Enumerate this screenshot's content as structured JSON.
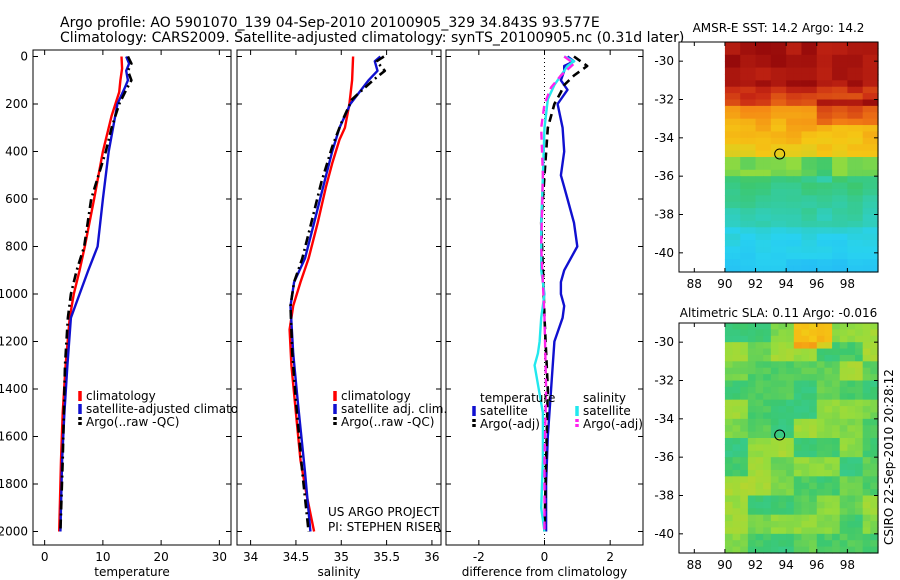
{
  "figure": {
    "title_line1": "Argo profile: AO 5901070_139 04-Sep-2010 20100905_329 34.843S 93.577E",
    "title_line2": "Climatology: CARS2009. Satellite-adjusted climatology: synTS_20100905.nc (0.31d later)",
    "project_line1": "US ARGO PROJECT",
    "project_line2": "PI: STEPHEN RISER",
    "side_stamp": "CSIRO 22-Sep-2010 20:28:12"
  },
  "colors": {
    "climatology": "#ff0000",
    "satellite": "#1010d0",
    "argo": "#000000",
    "diff_sal_sat": "#22e8ee",
    "diff_sal_argo": "#ff22ee",
    "marker_edge": "#000000"
  },
  "chart_data": [
    {
      "type": "line",
      "id": "temperature",
      "xlabel": "temperature",
      "ylabel": "",
      "xlim": [
        -2,
        32
      ],
      "ylim": [
        0,
        2050
      ],
      "y_reversed": true,
      "xticks": [
        0,
        10,
        20,
        30
      ],
      "yticks": [
        0,
        200,
        400,
        600,
        800,
        1000,
        1200,
        1400,
        1600,
        1800,
        2000
      ],
      "legend": {
        "position": "center-right",
        "entries": [
          "climatology",
          "satellite-adjusted climatology",
          "Argo(..raw -QC)"
        ]
      },
      "series": [
        {
          "name": "climatology",
          "key": "climatology",
          "style": "solid",
          "x": [
            13.2,
            13.3,
            13.0,
            12.8,
            11.5,
            10.0,
            8.5,
            6.9,
            6.0,
            5.0,
            4.3,
            3.6,
            3.1,
            2.8,
            2.5
          ],
          "y": [
            0,
            50,
            100,
            150,
            250,
            400,
            600,
            800,
            900,
            1000,
            1100,
            1300,
            1500,
            1700,
            2000
          ]
        },
        {
          "name": "satellite-adjusted climatology",
          "key": "satellite",
          "style": "solid",
          "x": [
            14.0,
            14.5,
            14.0,
            14.3,
            13.8,
            12.5,
            11.0,
            10.0,
            9.1,
            7.5,
            6.0,
            4.5,
            3.9,
            3.4,
            3.0,
            2.7
          ],
          "y": [
            0,
            30,
            60,
            100,
            130,
            200,
            400,
            600,
            800,
            900,
            1000,
            1100,
            1300,
            1500,
            1700,
            2000
          ]
        },
        {
          "name": "Argo(..raw -QC)",
          "key": "argo",
          "style": "dashdot",
          "x": [
            14.3,
            14.9,
            14.3,
            14.9,
            14.0,
            12.8,
            11.5,
            10.5,
            8.0,
            6.8,
            5.5,
            4.5,
            4.0,
            3.5,
            3.1,
            2.7
          ],
          "y": [
            0,
            30,
            60,
            100,
            140,
            200,
            300,
            400,
            600,
            800,
            900,
            1000,
            1100,
            1300,
            1700,
            2000
          ]
        }
      ]
    },
    {
      "type": "line",
      "id": "salinity",
      "xlabel": "salinity",
      "ylabel": "",
      "xlim": [
        33.85,
        36.1
      ],
      "ylim": [
        0,
        2050
      ],
      "y_reversed": true,
      "xticks": [
        34,
        34.5,
        35,
        35.5,
        36
      ],
      "legend": {
        "position": "center-right",
        "entries": [
          "climatology",
          "satellite adj. clim.",
          "Argo(..raw -QC)"
        ]
      },
      "series": [
        {
          "name": "climatology",
          "key": "climatology",
          "style": "solid",
          "x": [
            35.13,
            35.12,
            35.09,
            35.04,
            34.98,
            34.9,
            34.83,
            34.74,
            34.64,
            34.55,
            34.47,
            34.43,
            34.45,
            34.5,
            34.55,
            34.62,
            34.7
          ],
          "y": [
            0,
            100,
            200,
            300,
            350,
            450,
            550,
            700,
            850,
            950,
            1050,
            1150,
            1300,
            1500,
            1700,
            1850,
            2000
          ]
        },
        {
          "name": "satellite adj. clim.",
          "key": "satellite",
          "style": "solid",
          "x": [
            35.43,
            35.37,
            35.4,
            35.3,
            35.1,
            34.98,
            34.9,
            34.8,
            34.7,
            34.6,
            34.48,
            34.44,
            34.47,
            34.52,
            34.6,
            34.66
          ],
          "y": [
            0,
            20,
            60,
            100,
            200,
            300,
            400,
            550,
            700,
            850,
            950,
            1050,
            1250,
            1450,
            1750,
            2000
          ]
        },
        {
          "name": "Argo(..raw -QC)",
          "key": "argo",
          "style": "dashdot",
          "x": [
            35.47,
            35.39,
            35.48,
            35.35,
            35.12,
            35.0,
            34.9,
            34.78,
            34.67,
            34.57,
            34.48,
            34.44,
            34.46,
            34.5,
            34.57,
            34.64
          ],
          "y": [
            0,
            20,
            60,
            100,
            180,
            280,
            380,
            530,
            700,
            850,
            950,
            1050,
            1250,
            1450,
            1750,
            2000
          ]
        }
      ]
    },
    {
      "type": "line",
      "id": "difference",
      "xlabel": "difference from climatology",
      "ylabel": "",
      "xlim": [
        -3,
        3
      ],
      "ylim": [
        0,
        2050
      ],
      "y_reversed": true,
      "xticks": [
        -2,
        0,
        2
      ],
      "zero_line": 0,
      "legend": {
        "position": "center",
        "entries": [
          "temperature",
          "satellite",
          "Argo(-adj)",
          "salinity",
          "satellite",
          "Argo(-adj)"
        ]
      },
      "series": [
        {
          "name": "temperature satellite",
          "key": "satellite",
          "style": "solid",
          "x": [
            0.7,
            0.9,
            0.6,
            0.6,
            0.5,
            0.7,
            0.4,
            0.55,
            0.6,
            0.5,
            0.6,
            0.7,
            0.9,
            1.0,
            0.6,
            0.5,
            0.5,
            0.6,
            0.55,
            0.3,
            0.2,
            0.1,
            0.05,
            0.05,
            0.05
          ],
          "y": [
            0,
            20,
            40,
            60,
            100,
            140,
            200,
            300,
            400,
            500,
            550,
            600,
            700,
            800,
            900,
            950,
            1000,
            1050,
            1100,
            1200,
            1400,
            1600,
            1800,
            1900,
            2000
          ]
        },
        {
          "name": "temperature Argo(-adj)",
          "key": "argo",
          "style": "dashed",
          "x": [
            0.9,
            1.3,
            0.9,
            0.6,
            0.5,
            0.3,
            0.1,
            0.0,
            -0.1,
            -0.05,
            0.0,
            0.1,
            0.05,
            0.0
          ],
          "y": [
            0,
            40,
            80,
            120,
            150,
            200,
            300,
            500,
            700,
            900,
            1100,
            1400,
            1700,
            2000
          ]
        },
        {
          "name": "salinity satellite",
          "key": "diff_sal_sat",
          "style": "solid",
          "x": [
            0.6,
            0.9,
            0.7,
            0.5,
            0.3,
            0.1,
            0.0,
            -0.05,
            -0.1,
            -0.1,
            0.0,
            -0.1,
            -0.15,
            -0.2,
            -0.3,
            -0.05,
            -0.05,
            -0.1,
            0.0
          ],
          "y": [
            0,
            20,
            40,
            80,
            120,
            180,
            300,
            500,
            700,
            900,
            1000,
            1100,
            1200,
            1250,
            1300,
            1500,
            1700,
            1900,
            2000
          ]
        },
        {
          "name": "salinity Argo(-adj)",
          "key": "diff_sal_argo",
          "style": "dashed",
          "x": [
            0.6,
            0.9,
            0.5,
            0.2,
            0.0,
            -0.1,
            -0.05,
            -0.1,
            0.0,
            0.05,
            0.0,
            0.0
          ],
          "y": [
            0,
            30,
            80,
            130,
            200,
            300,
            500,
            800,
            1100,
            1400,
            1700,
            2000
          ]
        }
      ]
    },
    {
      "type": "heatmap",
      "id": "sst_map",
      "title": "AMSR-E SST: 14.2  Argo: 14.2",
      "xlim": [
        87,
        100
      ],
      "ylim": [
        -41,
        -29
      ],
      "xticks": [
        88,
        90,
        92,
        94,
        96,
        98
      ],
      "yticks": [
        -30,
        -32,
        -34,
        -36,
        -38,
        -40
      ],
      "data_xlim": [
        90,
        100
      ],
      "argo_position": {
        "lon": 93.577,
        "lat": -34.843
      },
      "regions": [
        {
          "label": "warm-north",
          "lat_top": -29,
          "lat_bottom": -32.5,
          "color": "#b01010"
        },
        {
          "label": "frontal",
          "lat_top": -32.5,
          "lat_bottom": -35,
          "color": "#f0a000"
        },
        {
          "label": "cool-south",
          "lat_top": -35,
          "lat_bottom": -41,
          "color": "#30c890"
        }
      ]
    },
    {
      "type": "heatmap",
      "id": "sla_map",
      "title": "Altimetric SLA: 0.11  Argo: -0.016",
      "xlim": [
        87,
        100
      ],
      "ylim": [
        -41,
        -29
      ],
      "xticks": [
        88,
        90,
        92,
        94,
        96,
        98
      ],
      "yticks": [
        -30,
        -32,
        -34,
        -36,
        -38,
        -40
      ],
      "data_xlim": [
        90,
        100
      ],
      "argo_position": {
        "lon": 93.577,
        "lat": -34.843
      },
      "base_color": "#40c050"
    }
  ]
}
